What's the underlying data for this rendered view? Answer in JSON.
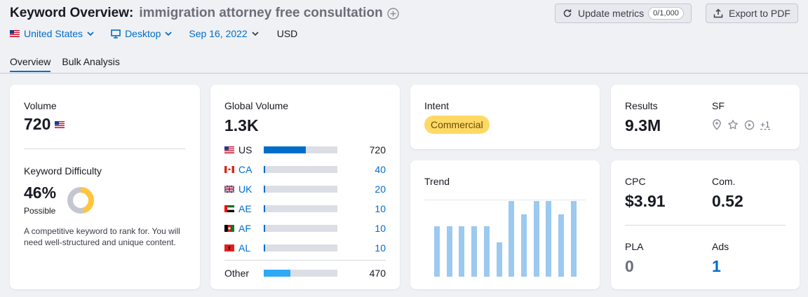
{
  "header": {
    "title": "Keyword Overview:",
    "keyword": "immigration attorney free consultation",
    "update_label": "Update metrics",
    "update_count": "0/1,000",
    "export_label": "Export to PDF"
  },
  "filters": {
    "country": "United States",
    "device": "Desktop",
    "date": "Sep 16, 2022",
    "currency": "USD"
  },
  "tabs": [
    "Overview",
    "Bulk Analysis"
  ],
  "volume": {
    "label": "Volume",
    "value": "720"
  },
  "difficulty": {
    "label": "Keyword Difficulty",
    "value": "46%",
    "level": "Possible",
    "percent": 46,
    "description": "A competitive keyword to rank for. You will need well-structured and unique content."
  },
  "global_volume": {
    "label": "Global Volume",
    "value": "1.3K",
    "countries": [
      {
        "code": "US",
        "value": "720",
        "fraction": 0.57
      },
      {
        "code": "CA",
        "value": "40",
        "fraction": 0.02
      },
      {
        "code": "UK",
        "value": "20",
        "fraction": 0.02
      },
      {
        "code": "AE",
        "value": "10",
        "fraction": 0.02
      },
      {
        "code": "AF",
        "value": "10",
        "fraction": 0.02
      },
      {
        "code": "AL",
        "value": "10",
        "fraction": 0.02
      }
    ],
    "other": {
      "label": "Other",
      "value": "470",
      "fraction": 0.36
    }
  },
  "intent": {
    "label": "Intent",
    "value": "Commercial"
  },
  "results": {
    "label": "Results",
    "value": "9.3M"
  },
  "sf": {
    "label": "SF",
    "more": "+1"
  },
  "trend": {
    "label": "Trend",
    "values": [
      0.67,
      0.67,
      0.67,
      0.67,
      0.67,
      0.45,
      1.0,
      0.82,
      1.0,
      1.0,
      0.82,
      1.0
    ]
  },
  "cpc": {
    "label": "CPC",
    "value": "$3.91"
  },
  "com": {
    "label": "Com.",
    "value": "0.52"
  },
  "pla": {
    "label": "PLA",
    "value": "0"
  },
  "ads": {
    "label": "Ads",
    "value": "1"
  },
  "colors": {
    "accent": "#006dca",
    "intent_badge": "#ffd966",
    "difficulty_ring": "#ffc53d"
  }
}
